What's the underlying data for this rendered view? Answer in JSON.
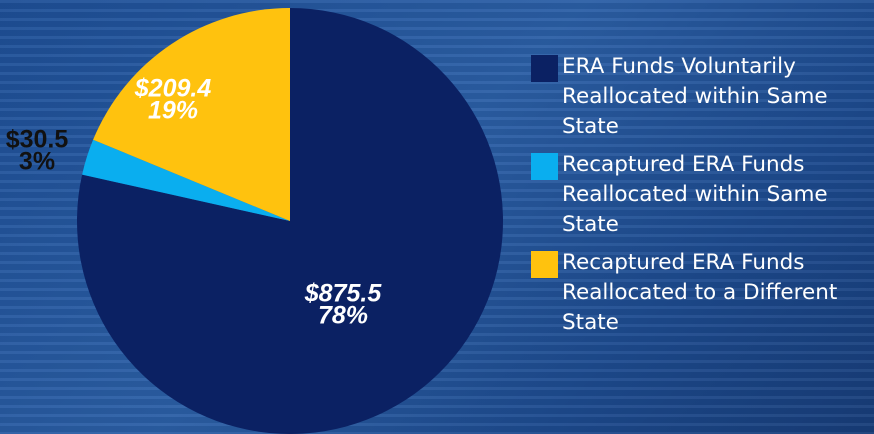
{
  "chart_data": {
    "type": "pie",
    "categories": [
      "ERA Funds Voluntarily Reallocated within Same State",
      "Recaptured ERA Funds Reallocated within Same State",
      "Recaptured ERA Funds Reallocated to a Different State"
    ],
    "values": [
      875.5,
      30.5,
      209.4
    ],
    "value_labels": [
      "$875.5",
      "$30.5",
      "$209.4"
    ],
    "percent_labels": [
      "78%",
      "3%",
      "19%"
    ],
    "colors": [
      "#0b2163",
      "#0aaeef",
      "#ffc20e"
    ]
  }
}
